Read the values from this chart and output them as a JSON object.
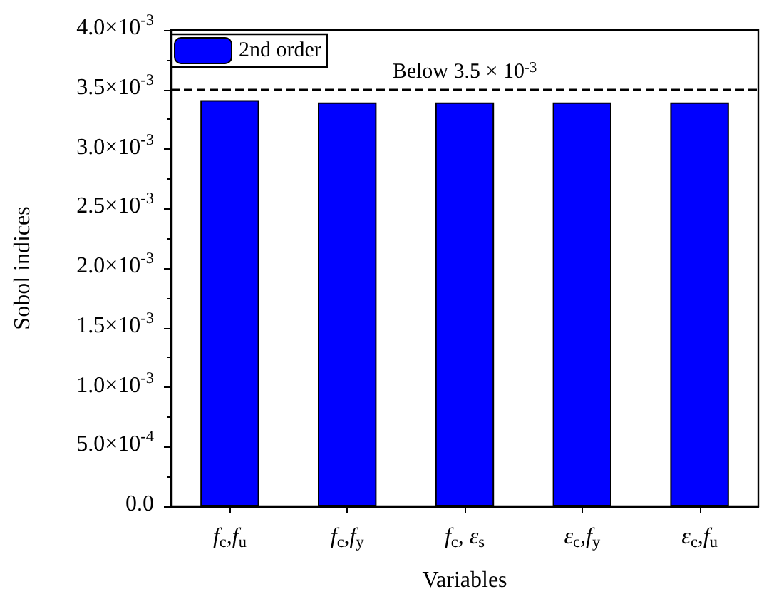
{
  "chart_data": {
    "type": "bar",
    "xlabel": "Variables",
    "ylabel": "Sobol indices",
    "categories": [
      "f$_{c}$,f$_{u}$",
      "f$_{c}$,f$_{y}$",
      "f$_{c}$, ε$_{s}$",
      "ε$_{c}$,f$_{y}$",
      "ε$_{c}$,f$_{u}$"
    ],
    "series": [
      {
        "name": "2nd order",
        "color": "#0000ff",
        "values": [
          0.00341,
          0.00339,
          0.00339,
          0.00339,
          0.00339
        ]
      }
    ],
    "ylim": [
      0,
      0.004
    ],
    "yticks": [
      {
        "value": 0,
        "label": "0.0"
      },
      {
        "value": 0.0005,
        "label": "5.0×10$^{-4}$"
      },
      {
        "value": 0.001,
        "label": "1.0×10$^{-3}$"
      },
      {
        "value": 0.0015,
        "label": "1.5×10$^{-3}$"
      },
      {
        "value": 0.002,
        "label": "2.0×10$^{-3}$"
      },
      {
        "value": 0.0025,
        "label": "2.5×10$^{-3}$"
      },
      {
        "value": 0.003,
        "label": "3.0×10$^{-3}$"
      },
      {
        "value": 0.0035,
        "label": "3.5×10$^{-3}$"
      },
      {
        "value": 0.004,
        "label": "4.0×10$^{-3}$"
      }
    ],
    "ref_lines": [
      {
        "axis": "y",
        "value": 0.0035,
        "label": "Below 3.5 × 10$^{-3}$",
        "color": "#000000",
        "line_style": "dashed"
      }
    ],
    "legend": "top left",
    "grid": false
  }
}
